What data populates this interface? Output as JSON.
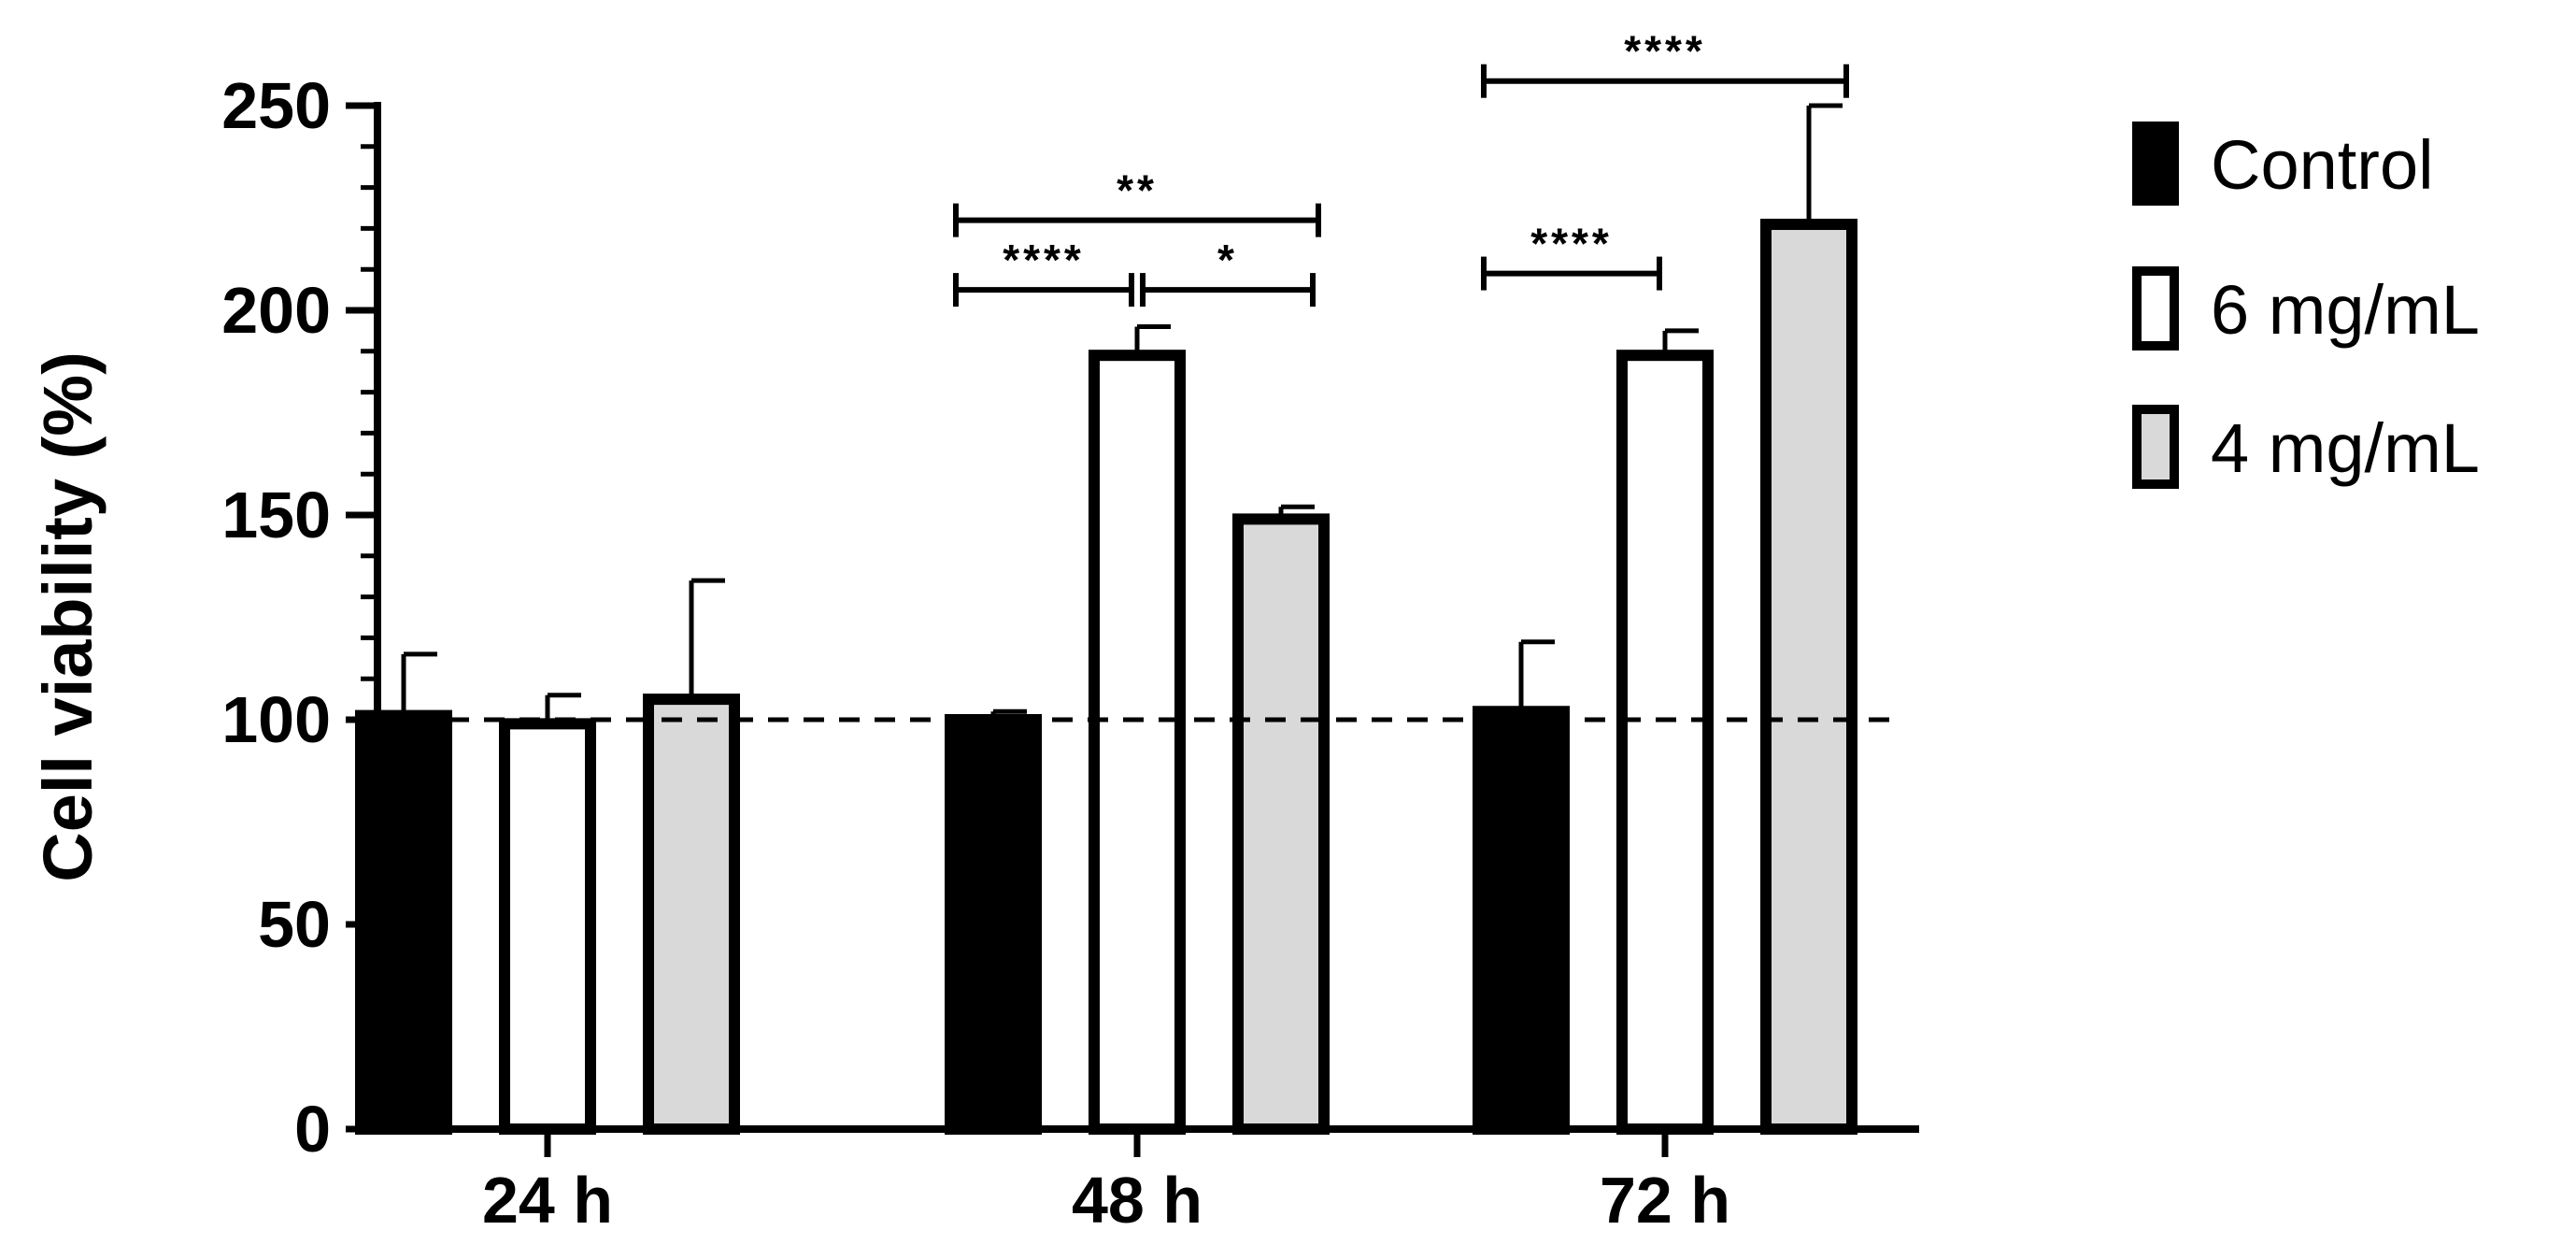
{
  "chart_data": {
    "type": "bar",
    "title": "",
    "xlabel": "",
    "ylabel": "Cell viability (%)",
    "categories": [
      "24 h",
      "48 h",
      "72 h"
    ],
    "ylim": [
      0,
      250
    ],
    "yticks": [
      "0",
      "50",
      "100",
      "150",
      "200",
      "250"
    ],
    "reference_line": {
      "y": 100,
      "style": "dashed"
    },
    "legend_position": "right",
    "series": [
      {
        "name": "Control",
        "fill": "#000000",
        "values": [
          101,
          100,
          102
        ],
        "errors": [
          15,
          2,
          17
        ]
      },
      {
        "name": "6 mg/mL",
        "fill": "#ffffff",
        "values": [
          99,
          189,
          189
        ],
        "errors": [
          7,
          7,
          6
        ]
      },
      {
        "name": "4 mg/mL",
        "fill": "#d9d9d9",
        "values": [
          105,
          149,
          221
        ],
        "errors": [
          29,
          3,
          29
        ]
      }
    ],
    "significance": [
      {
        "category": "48 h",
        "from_series": 0,
        "to_series": 1,
        "label": "****",
        "y": 205,
        "level": "lower"
      },
      {
        "category": "48 h",
        "from_series": 1,
        "to_series": 2,
        "label": "*",
        "y": 205,
        "level": "lower"
      },
      {
        "category": "48 h",
        "from_series": 0,
        "to_series": 2,
        "label": "**",
        "y": 222,
        "level": "upper"
      },
      {
        "category": "72 h",
        "from_series": 0,
        "to_series": 1,
        "label": "****",
        "y": 209,
        "level": "lower"
      },
      {
        "category": "72 h",
        "from_series": 0,
        "to_series": 2,
        "label": "****",
        "y": 256,
        "level": "upper"
      }
    ]
  }
}
